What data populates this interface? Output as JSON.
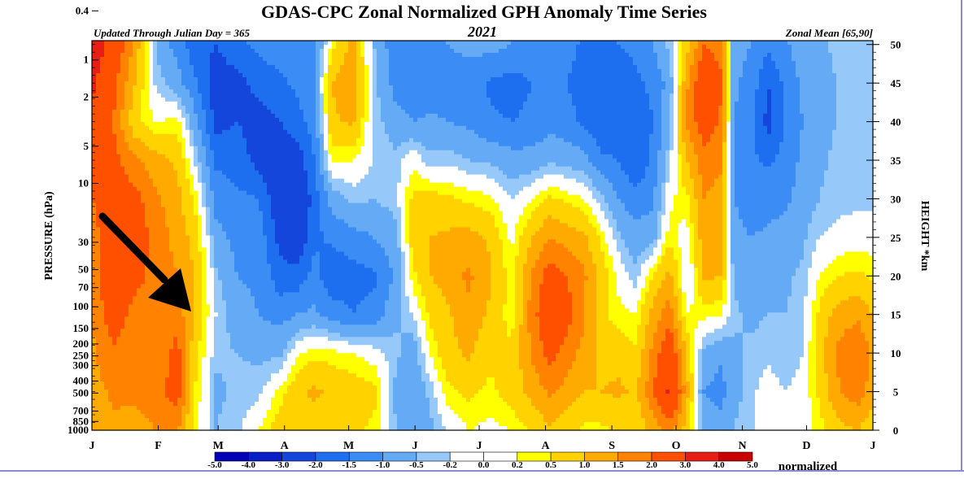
{
  "chart_data": {
    "type": "heatmap",
    "title": "GDAS-CPC Zonal Normalized GPH Anomaly Time Series",
    "subtitle_left": "Updated Through Julian Day = 365",
    "year": "2021",
    "subtitle_right": "Zonal Mean [65,90]",
    "ylabel_left": "PRESSURE (hPa)",
    "ylabel_right": "HEIGHT *km",
    "colorbar_unit": "normalized",
    "pressure_ticks": [
      "0.4",
      "1",
      "2",
      "5",
      "10",
      "30",
      "50",
      "70",
      "100",
      "150",
      "200",
      "250",
      "300",
      "400",
      "500",
      "700",
      "850",
      "1000"
    ],
    "height_ticks": [
      "50",
      "45",
      "40",
      "35",
      "30",
      "25",
      "20",
      "15",
      "10",
      "5",
      "0"
    ],
    "month_ticks": [
      "J",
      "F",
      "M",
      "A",
      "M",
      "J",
      "J",
      "A",
      "S",
      "O",
      "N",
      "D",
      "J"
    ],
    "colorbar_levels": [
      "-5.0",
      "-4.0",
      "-3.0",
      "-2.0",
      "-1.5",
      "-1.0",
      "-0.5",
      "-0.2",
      "0.0",
      "0.2",
      "0.5",
      "1.0",
      "1.5",
      "2.0",
      "3.0",
      "4.0",
      "5.0"
    ],
    "colorbar_colors": [
      "#0000b4",
      "#0a1ec8",
      "#1446dc",
      "#1e6ef0",
      "#3c8cf5",
      "#64aaf5",
      "#96c8fa",
      "#ffffff",
      "#ffffff",
      "#ffff00",
      "#ffd200",
      "#ffaa00",
      "#ff8200",
      "#ff5000",
      "#e61e14",
      "#c80000"
    ],
    "columns": [
      {
        "day": 0,
        "values": [
          3.6,
          3.2,
          2.8,
          2.4,
          2.0,
          1.7,
          1.6,
          1.5,
          1.4,
          1.3,
          1.2
        ]
      },
      {
        "day": 10,
        "values": [
          2.6,
          2.2,
          2.0,
          2.2,
          2.4,
          2.6,
          2.7,
          2.4,
          1.9,
          1.6,
          1.4
        ]
      },
      {
        "day": 20,
        "values": [
          1.4,
          1.0,
          0.6,
          1.6,
          2.2,
          2.4,
          2.2,
          1.8,
          1.6,
          1.6,
          1.3
        ]
      },
      {
        "day": 30,
        "values": [
          -0.6,
          -0.3,
          0.2,
          1.2,
          1.6,
          1.8,
          1.8,
          1.7,
          1.6,
          1.8,
          1.5
        ]
      },
      {
        "day": 40,
        "values": [
          -1.2,
          -0.8,
          0.3,
          0.9,
          1.2,
          1.3,
          1.5,
          1.8,
          2.2,
          2.3,
          1.6
        ]
      },
      {
        "day": 48,
        "values": [
          -1.8,
          -1.4,
          -0.8,
          -0.2,
          0.4,
          0.8,
          1.0,
          0.9,
          0.7,
          0.5,
          0.3
        ]
      },
      {
        "day": 58,
        "values": [
          -2.0,
          -2.3,
          -2.2,
          -1.6,
          -1.2,
          -0.8,
          -0.4,
          -0.2,
          -0.4,
          -0.6,
          -0.5
        ]
      },
      {
        "day": 68,
        "values": [
          -1.6,
          -2.2,
          -2.0,
          -1.7,
          -1.4,
          -1.2,
          -1.0,
          -0.8,
          -0.5,
          -0.4,
          -0.3
        ]
      },
      {
        "day": 78,
        "values": [
          -1.4,
          -1.8,
          -2.3,
          -2.2,
          -1.5,
          -1.2,
          -1.1,
          -1.0,
          -0.6,
          -0.3,
          0.2
        ]
      },
      {
        "day": 88,
        "values": [
          -1.2,
          -1.6,
          -2.0,
          -2.4,
          -2.5,
          -2.2,
          -1.8,
          -1.2,
          -0.6,
          0.3,
          0.8
        ]
      },
      {
        "day": 96,
        "values": [
          -1.0,
          -1.4,
          -1.7,
          -2.3,
          -2.6,
          -2.5,
          -1.8,
          -1.0,
          0.1,
          0.9,
          0.9
        ]
      },
      {
        "day": 104,
        "values": [
          -1.2,
          -1.0,
          -1.3,
          -1.5,
          -1.8,
          -1.6,
          -1.3,
          -0.9,
          0.4,
          1.1,
          0.8
        ]
      },
      {
        "day": 112,
        "values": [
          0.3,
          1.0,
          0.9,
          0.3,
          -0.8,
          -1.4,
          -1.9,
          -1.2,
          0.3,
          0.9,
          0.5
        ]
      },
      {
        "day": 122,
        "values": [
          1.2,
          1.4,
          1.1,
          0.2,
          -0.4,
          -1.2,
          -1.7,
          -1.5,
          0.2,
          0.8,
          0.6
        ]
      },
      {
        "day": 132,
        "values": [
          -0.5,
          -0.4,
          -0.3,
          -0.2,
          -0.5,
          -1.0,
          -1.6,
          -1.3,
          0.0,
          0.6,
          0.4
        ]
      },
      {
        "day": 142,
        "values": [
          -1.4,
          -1.2,
          -0.8,
          -0.4,
          -0.3,
          -0.7,
          -0.9,
          -0.6,
          -0.4,
          -0.6,
          -0.5
        ]
      },
      {
        "day": 150,
        "values": [
          -1.2,
          -1.3,
          -1.0,
          0.1,
          0.6,
          0.7,
          0.4,
          -0.2,
          -0.8,
          -0.9,
          -0.8
        ]
      },
      {
        "day": 158,
        "values": [
          -1.2,
          -1.4,
          -0.9,
          -0.4,
          0.7,
          1.0,
          1.0,
          0.6,
          0.2,
          -0.4,
          -0.6
        ]
      },
      {
        "day": 166,
        "values": [
          -1.0,
          -1.2,
          -1.0,
          -0.3,
          0.6,
          1.1,
          1.2,
          0.9,
          0.8,
          0.4,
          -0.2
        ]
      },
      {
        "day": 176,
        "values": [
          -0.9,
          -1.2,
          -1.1,
          -0.5,
          0.4,
          1.2,
          1.6,
          1.4,
          1.1,
          0.6,
          0.2
        ]
      },
      {
        "day": 186,
        "values": [
          -0.8,
          -1.6,
          -1.4,
          -0.6,
          0.3,
          0.9,
          1.1,
          0.9,
          0.6,
          0.4,
          0.1
        ]
      },
      {
        "day": 196,
        "values": [
          -1.0,
          -1.7,
          -1.5,
          -0.8,
          -0.2,
          0.1,
          0.3,
          0.3,
          0.6,
          0.7,
          0.2
        ]
      },
      {
        "day": 206,
        "values": [
          -1.2,
          -1.5,
          -1.4,
          -0.8,
          0.2,
          1.0,
          1.6,
          1.8,
          1.6,
          1.2,
          0.6
        ]
      },
      {
        "day": 214,
        "values": [
          -1.2,
          -1.4,
          -1.2,
          -0.6,
          0.6,
          1.5,
          2.3,
          2.6,
          2.2,
          1.6,
          0.9
        ]
      },
      {
        "day": 222,
        "values": [
          -1.3,
          -1.5,
          -1.3,
          -0.7,
          0.4,
          1.3,
          2.0,
          2.2,
          1.8,
          1.3,
          0.6
        ]
      },
      {
        "day": 230,
        "values": [
          -1.6,
          -1.8,
          -1.6,
          -0.8,
          0.2,
          1.1,
          1.6,
          1.6,
          1.3,
          1.0,
          0.4
        ]
      },
      {
        "day": 238,
        "values": [
          -1.8,
          -2.0,
          -1.9,
          -1.4,
          -0.4,
          0.4,
          0.8,
          0.6,
          0.9,
          1.0,
          0.4
        ]
      },
      {
        "day": 246,
        "values": [
          -1.5,
          -1.8,
          -1.7,
          -1.5,
          -1.0,
          -0.4,
          0.1,
          0.3,
          0.8,
          1.1,
          0.6
        ]
      },
      {
        "day": 254,
        "values": [
          -1.4,
          -1.6,
          -1.9,
          -2.0,
          -1.3,
          -0.8,
          -0.4,
          0.2,
          0.6,
          0.9,
          0.5
        ]
      },
      {
        "day": 262,
        "values": [
          -1.0,
          -1.4,
          -1.5,
          -1.4,
          -1.1,
          -0.7,
          0.5,
          1.2,
          1.6,
          1.9,
          1.2
        ]
      },
      {
        "day": 270,
        "values": [
          -0.4,
          -0.8,
          -0.6,
          -0.3,
          0.1,
          0.4,
          1.2,
          1.8,
          2.6,
          3.2,
          1.6
        ]
      },
      {
        "day": 278,
        "values": [
          0.8,
          1.4,
          1.6,
          1.0,
          0.4,
          0.0,
          -0.3,
          0.2,
          0.9,
          1.2,
          0.8
        ]
      },
      {
        "day": 286,
        "values": [
          2.0,
          2.6,
          2.4,
          1.8,
          1.5,
          1.3,
          1.1,
          0.3,
          -0.6,
          -1.0,
          -0.6
        ]
      },
      {
        "day": 294,
        "values": [
          1.8,
          2.1,
          1.9,
          1.6,
          1.3,
          1.2,
          1.0,
          0.2,
          -0.9,
          -1.2,
          -0.8
        ]
      },
      {
        "day": 300,
        "values": [
          -0.8,
          -0.9,
          -1.0,
          -1.1,
          -1.0,
          -0.8,
          -0.6,
          -0.4,
          -0.6,
          -0.7,
          -0.5
        ]
      },
      {
        "day": 308,
        "values": [
          -1.0,
          -1.2,
          -1.3,
          -1.4,
          -1.3,
          -1.0,
          -0.8,
          -0.6,
          -0.4,
          -0.3,
          -0.2
        ]
      },
      {
        "day": 316,
        "values": [
          -1.4,
          -2.0,
          -2.2,
          -1.6,
          -1.2,
          -0.9,
          -0.7,
          -0.5,
          -0.3,
          0.0,
          -0.2
        ]
      },
      {
        "day": 324,
        "values": [
          -1.1,
          -1.4,
          -1.5,
          -1.3,
          -1.1,
          -0.8,
          -0.6,
          -0.5,
          -0.4,
          -0.2,
          -0.1
        ]
      },
      {
        "day": 332,
        "values": [
          -0.7,
          -0.9,
          -1.0,
          -0.9,
          -0.8,
          -0.6,
          -0.4,
          -0.3,
          -0.2,
          -0.1,
          0.0
        ]
      },
      {
        "day": 340,
        "values": [
          -0.6,
          -0.7,
          -0.7,
          -0.6,
          -0.5,
          -0.2,
          0.2,
          0.6,
          0.8,
          0.6,
          0.3
        ]
      },
      {
        "day": 348,
        "values": [
          -0.4,
          -0.5,
          -0.5,
          -0.4,
          -0.3,
          -0.1,
          0.5,
          1.2,
          1.6,
          1.4,
          0.8
        ]
      },
      {
        "day": 358,
        "values": [
          -0.4,
          -0.5,
          -0.5,
          -0.4,
          -0.3,
          0.0,
          0.6,
          1.4,
          2.0,
          1.8,
          1.0
        ]
      },
      {
        "day": 365,
        "values": [
          -0.4,
          -0.5,
          -0.5,
          -0.4,
          -0.3,
          0.0,
          0.4,
          1.0,
          1.4,
          1.2,
          0.6
        ]
      }
    ],
    "column_heights_km": [
      50,
      45,
      40,
      35,
      30,
      25,
      20,
      15,
      10,
      5,
      0
    ],
    "x_range_days": [
      0,
      365
    ],
    "y_range_km": [
      0,
      50.5
    ]
  }
}
